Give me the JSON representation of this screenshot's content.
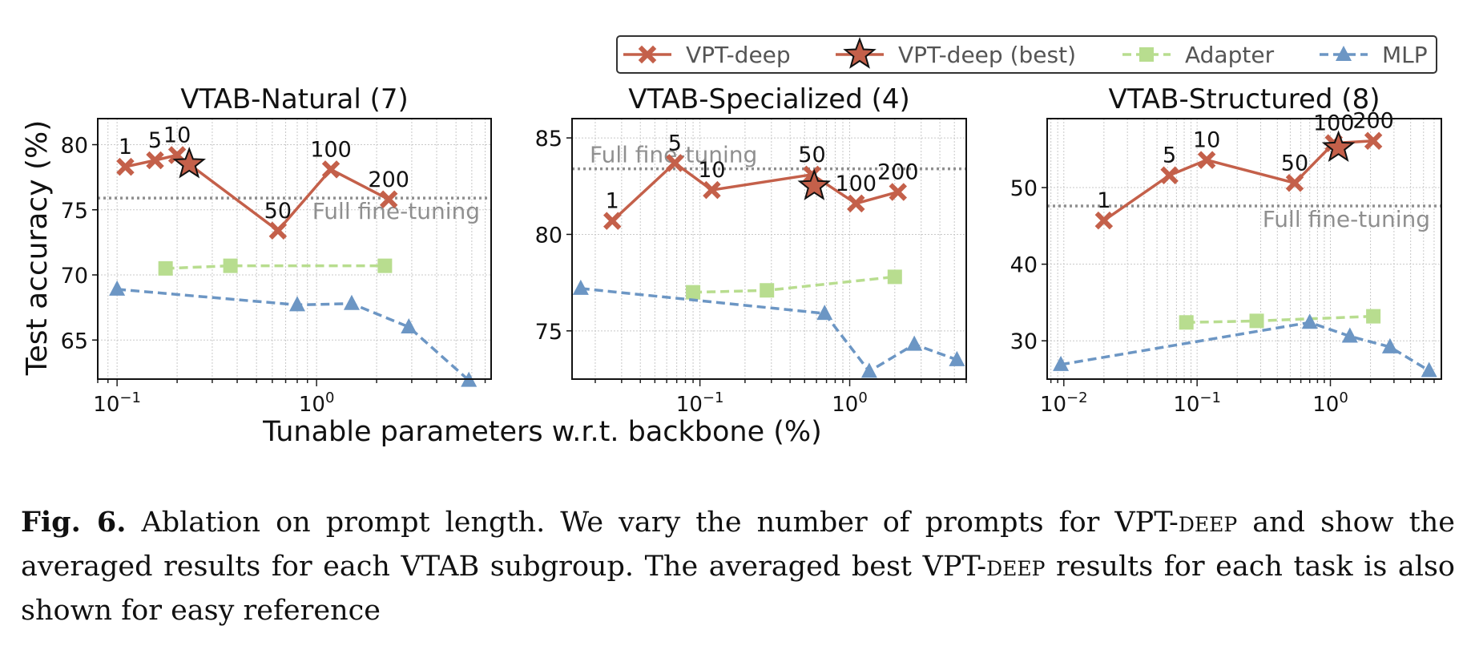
{
  "legend": {
    "entries": [
      {
        "label": "VPT-deep",
        "color": "#c4604a",
        "marker": "x-marker",
        "line": "solid"
      },
      {
        "label": "VPT-deep (best)",
        "color": "#c4604a",
        "marker": "star-marker",
        "line": "solid"
      },
      {
        "label": "Adapter",
        "color": "#b8dd8f",
        "marker": "square-marker",
        "line": "dashed"
      },
      {
        "label": "MLP",
        "color": "#6c96c4",
        "marker": "triangle-marker",
        "line": "dashed"
      }
    ]
  },
  "shared": {
    "ylabel": "Test accuracy (%)",
    "xlabel": "Tunable parameters w.r.t. backbone (%)",
    "x_scale": "log",
    "reference_label": "Full fine-tuning"
  },
  "chart_data": [
    {
      "type": "line",
      "title": "VTAB-Natural (7)",
      "xlim": [
        0.08,
        7.5
      ],
      "ylim": [
        62,
        82
      ],
      "x_ticks": [
        {
          "value": 0.1,
          "base": "10",
          "exp": "−1"
        },
        {
          "value": 1,
          "base": "10",
          "exp": "0"
        }
      ],
      "y_ticks": [
        65,
        70,
        75,
        80
      ],
      "reference_y": 75.9,
      "reference_label_anchor": "lower-right",
      "series": [
        {
          "name": "VPT-deep",
          "points": [
            {
              "x": 0.11,
              "y": 78.3,
              "label": "1"
            },
            {
              "x": 0.155,
              "y": 78.8,
              "label": "5"
            },
            {
              "x": 0.2,
              "y": 79.2,
              "label": "10"
            },
            {
              "x": 0.64,
              "y": 73.4,
              "label": "50"
            },
            {
              "x": 1.18,
              "y": 78.1,
              "label": "100"
            },
            {
              "x": 2.3,
              "y": 75.8,
              "label": "200"
            }
          ]
        },
        {
          "name": "VPT-deep (best)",
          "points": [
            {
              "x": 0.23,
              "y": 78.5
            }
          ]
        },
        {
          "name": "Adapter",
          "points": [
            {
              "x": 0.175,
              "y": 70.5
            },
            {
              "x": 0.37,
              "y": 70.7
            },
            {
              "x": 2.2,
              "y": 70.7
            }
          ]
        },
        {
          "name": "MLP",
          "points": [
            {
              "x": 0.1,
              "y": 68.9
            },
            {
              "x": 0.8,
              "y": 67.7
            },
            {
              "x": 1.5,
              "y": 67.8
            },
            {
              "x": 2.9,
              "y": 66.0
            },
            {
              "x": 5.8,
              "y": 61.9
            }
          ]
        }
      ]
    },
    {
      "type": "line",
      "title": "VTAB-Specialized (4)",
      "xlim": [
        0.014,
        6.0
      ],
      "ylim": [
        72.5,
        86
      ],
      "x_ticks": [
        {
          "value": 0.1,
          "base": "10",
          "exp": "−1"
        },
        {
          "value": 1,
          "base": "10",
          "exp": "0"
        }
      ],
      "y_ticks": [
        75,
        80,
        85
      ],
      "reference_y": 83.4,
      "reference_label_anchor": "upper-left",
      "series": [
        {
          "name": "VPT-deep",
          "points": [
            {
              "x": 0.026,
              "y": 80.7,
              "label": "1"
            },
            {
              "x": 0.068,
              "y": 83.7,
              "label": "5"
            },
            {
              "x": 0.12,
              "y": 82.3,
              "label": "10"
            },
            {
              "x": 0.56,
              "y": 83.1,
              "label": "50"
            },
            {
              "x": 1.1,
              "y": 81.6,
              "label": "100"
            },
            {
              "x": 2.1,
              "y": 82.2,
              "label": "200"
            }
          ]
        },
        {
          "name": "VPT-deep (best)",
          "points": [
            {
              "x": 0.58,
              "y": 82.5
            }
          ]
        },
        {
          "name": "Adapter",
          "points": [
            {
              "x": 0.09,
              "y": 77.0
            },
            {
              "x": 0.28,
              "y": 77.1
            },
            {
              "x": 2.0,
              "y": 77.8
            }
          ]
        },
        {
          "name": "MLP",
          "points": [
            {
              "x": 0.016,
              "y": 77.2
            },
            {
              "x": 0.68,
              "y": 75.9
            },
            {
              "x": 1.35,
              "y": 72.9
            },
            {
              "x": 2.7,
              "y": 74.3
            },
            {
              "x": 5.2,
              "y": 73.5
            }
          ]
        }
      ]
    },
    {
      "type": "line",
      "title": "VTAB-Structured (8)",
      "xlim": [
        0.0075,
        6.8
      ],
      "ylim": [
        25,
        59
      ],
      "x_ticks": [
        {
          "value": 0.01,
          "base": "10",
          "exp": "−2"
        },
        {
          "value": 0.1,
          "base": "10",
          "exp": "−1"
        },
        {
          "value": 1,
          "base": "10",
          "exp": "0"
        }
      ],
      "y_ticks": [
        30,
        40,
        50
      ],
      "reference_y": 47.6,
      "reference_label_anchor": "lower-right",
      "series": [
        {
          "name": "VPT-deep",
          "points": [
            {
              "x": 0.02,
              "y": 45.7,
              "label": "1"
            },
            {
              "x": 0.062,
              "y": 51.6,
              "label": "5"
            },
            {
              "x": 0.118,
              "y": 53.6,
              "label": "10"
            },
            {
              "x": 0.54,
              "y": 50.6,
              "label": "50"
            },
            {
              "x": 1.06,
              "y": 55.8,
              "label": "100"
            },
            {
              "x": 2.1,
              "y": 56.1,
              "label": "200"
            }
          ]
        },
        {
          "name": "VPT-deep (best)",
          "points": [
            {
              "x": 1.15,
              "y": 55.2
            }
          ]
        },
        {
          "name": "Adapter",
          "points": [
            {
              "x": 0.083,
              "y": 32.4
            },
            {
              "x": 0.28,
              "y": 32.6
            },
            {
              "x": 2.1,
              "y": 33.2
            }
          ]
        },
        {
          "name": "MLP",
          "points": [
            {
              "x": 0.0095,
              "y": 26.9
            },
            {
              "x": 0.7,
              "y": 32.4
            },
            {
              "x": 1.4,
              "y": 30.6
            },
            {
              "x": 2.8,
              "y": 29.2
            },
            {
              "x": 5.5,
              "y": 26.1
            }
          ]
        }
      ]
    }
  ],
  "caption": {
    "label": "Fig. 6.",
    "text": "Ablation on prompt length. We vary the number of prompts for VPT-deep and show the averaged results for each VTAB subgroup. The averaged best VPT-deep results for each task is also shown for easy reference"
  }
}
